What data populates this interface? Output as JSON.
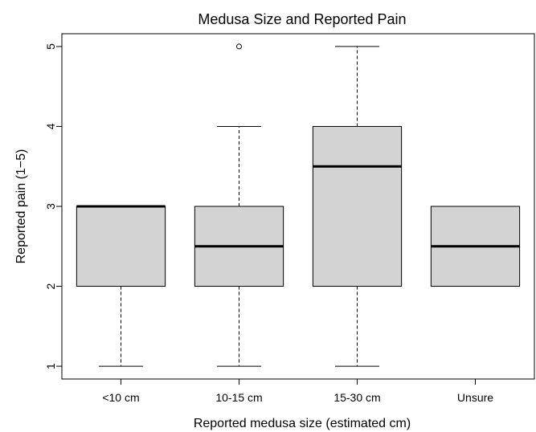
{
  "chart_data": {
    "type": "boxplot",
    "title": "Medusa Size and Reported Pain",
    "xlabel": "Reported medusa size (estimated cm)",
    "ylabel": "Reported pain (1−5)",
    "ylim": [
      0.84,
      5.16
    ],
    "yticks": [
      1,
      2,
      3,
      4,
      5
    ],
    "grid": false,
    "legend": "none",
    "categories": [
      "<10 cm",
      "10-15 cm",
      "15-30 cm",
      "Unsure"
    ],
    "boxes": [
      {
        "category": "<10 cm",
        "whisker_low": 1,
        "q1": 2,
        "median": 3,
        "q3": 3,
        "whisker_high": 3,
        "outliers": []
      },
      {
        "category": "10-15 cm",
        "whisker_low": 1,
        "q1": 2,
        "median": 2.5,
        "q3": 3,
        "whisker_high": 4,
        "outliers": [
          5
        ]
      },
      {
        "category": "15-30 cm",
        "whisker_low": 1,
        "q1": 2,
        "median": 3.5,
        "q3": 4,
        "whisker_high": 5,
        "outliers": []
      },
      {
        "category": "Unsure",
        "whisker_low": 2,
        "q1": 2,
        "median": 2.5,
        "q3": 3,
        "whisker_high": 3,
        "outliers": []
      }
    ],
    "colors": {
      "box_fill": "#d3d3d3",
      "stroke": "#000000",
      "background": "#ffffff"
    }
  }
}
